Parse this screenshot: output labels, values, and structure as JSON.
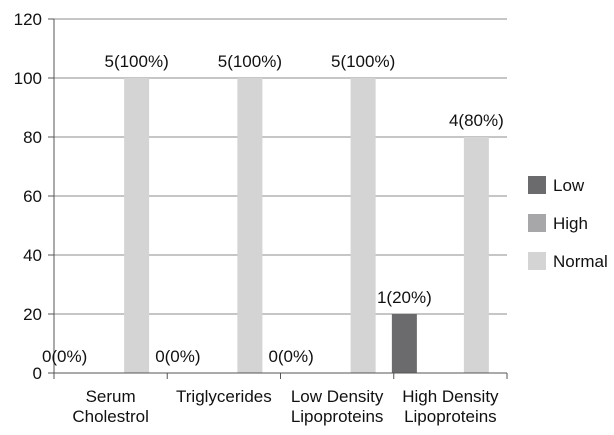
{
  "chart_data": {
    "type": "bar",
    "categories": [
      [
        "Serum",
        "Cholestrol"
      ],
      [
        "Triglycerides"
      ],
      [
        "Low Density",
        "Lipoproteins"
      ],
      [
        "High Density",
        "Lipoproteins"
      ]
    ],
    "series": [
      {
        "name": "Low",
        "color": "#6b6b6d",
        "values": [
          0,
          0,
          0,
          20
        ]
      },
      {
        "name": "High",
        "color": "#a7a7a9",
        "values": [
          0,
          0,
          0,
          0
        ]
      },
      {
        "name": "Normal",
        "color": "#d4d4d4",
        "values": [
          100,
          100,
          100,
          80
        ]
      }
    ],
    "data_labels": [
      {
        "category": 0,
        "series": 0,
        "text": "0(0%)"
      },
      {
        "category": 0,
        "series": 2,
        "text": "5(100%)"
      },
      {
        "category": 1,
        "series": 0,
        "text": "0(0%)"
      },
      {
        "category": 1,
        "series": 2,
        "text": "5(100%)"
      },
      {
        "category": 2,
        "series": 0,
        "text": "0(0%)"
      },
      {
        "category": 2,
        "series": 2,
        "text": "5(100%)"
      },
      {
        "category": 3,
        "series": 0,
        "text": "1(20%)"
      },
      {
        "category": 3,
        "series": 2,
        "text": "4(80%)"
      }
    ],
    "ylim": [
      0,
      120
    ],
    "yticks": [
      0,
      20,
      40,
      60,
      80,
      100,
      120
    ],
    "grid": true,
    "legend": "right",
    "title": "",
    "xlabel": "",
    "ylabel": ""
  }
}
